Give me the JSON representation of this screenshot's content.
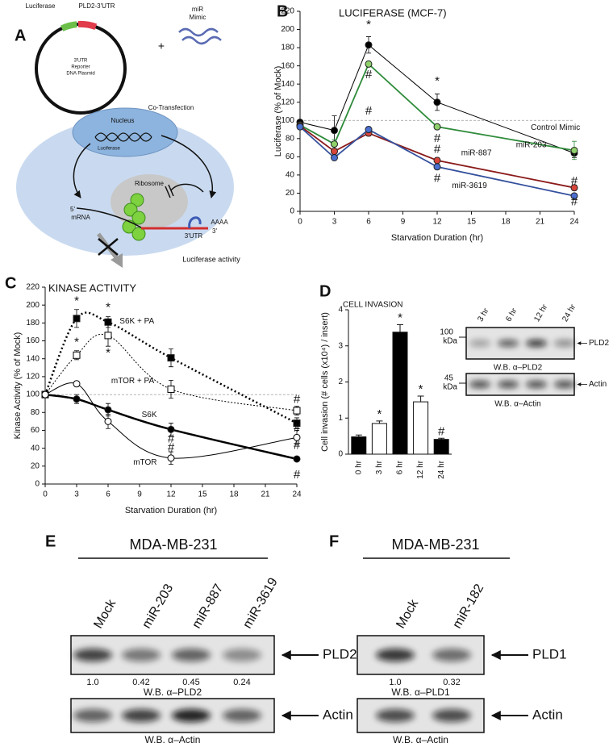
{
  "figure": {
    "panels": [
      "A",
      "B",
      "C",
      "D",
      "E",
      "F"
    ]
  },
  "diagram": {
    "luciferase": "Luciferase",
    "utr": "PLD2-3'UTR",
    "mimic": [
      "miR",
      "Mimic"
    ],
    "plasmid": [
      "3'UTR",
      "Reporter",
      "DNA Plasmid"
    ],
    "plus": "+",
    "transfection": "Co-Transfection",
    "nucleus": "Nucleus",
    "nucleus_luciferase": "Luciferase",
    "ribosome": "Ribosome",
    "five_prime": "5'",
    "mrna": "mRNA",
    "polya": "AAAA",
    "three_utr": "3'UTR",
    "three_prime": "3'",
    "activity": "Luciferase activity"
  },
  "chart_data": [
    {
      "type": "line",
      "title": "LUCIFERASE (MCF-7)",
      "x_label": "Starvation Duration (hr)",
      "y_label": "Luciferase (% of Mock)",
      "x": [
        0,
        3,
        6,
        12,
        24
      ],
      "xlim": [
        0,
        24
      ],
      "xticks": [
        0,
        3,
        6,
        9,
        12,
        15,
        18,
        21,
        24
      ],
      "ylim": [
        0,
        220
      ],
      "yticks": [
        0,
        20,
        40,
        60,
        80,
        100,
        120,
        140,
        160,
        180,
        200,
        220
      ],
      "reference_line": 100,
      "smooth": false,
      "series": [
        {
          "name": "Control Mimic",
          "color": "#000000",
          "marker_color": "#000000",
          "marker": "circle",
          "fill": "filled",
          "line_width": 1,
          "dashed": false,
          "values": [
            98,
            89,
            183,
            120,
            64
          ],
          "errors": [
            2,
            16,
            9,
            9,
            5
          ]
        },
        {
          "name": "miR-203",
          "color": "#2e8b3a",
          "marker_color": "#8fd16b",
          "marker": "circle",
          "fill": "filled",
          "line_width": 1.8,
          "dashed": false,
          "values": [
            95,
            74,
            162,
            93,
            67
          ],
          "errors": [
            2,
            5,
            3,
            2,
            10
          ]
        },
        {
          "name": "miR-887",
          "color": "#8b1a1a",
          "marker_color": "#d9453a",
          "marker": "circle",
          "fill": "filled",
          "line_width": 1.8,
          "dashed": false,
          "values": [
            94,
            66,
            86,
            56,
            26
          ],
          "errors": [
            2,
            3,
            3,
            3,
            3
          ]
        },
        {
          "name": "miR-3619",
          "color": "#34509c",
          "marker_color": "#4a6fd0",
          "marker": "circle",
          "fill": "filled",
          "line_width": 1.8,
          "dashed": false,
          "values": [
            93,
            59,
            90,
            49,
            17
          ],
          "errors": [
            2,
            2,
            3,
            3,
            2
          ]
        }
      ],
      "annotations": [
        {
          "text": "*",
          "x": 6,
          "y": 205
        },
        {
          "text": "#",
          "x": 6,
          "y": 150
        },
        {
          "text": "#",
          "x": 6,
          "y": 110
        },
        {
          "text": "*",
          "x": 12,
          "y": 143
        },
        {
          "text": "#",
          "x": 12,
          "y": 80
        },
        {
          "text": "#",
          "x": 12,
          "y": 68
        },
        {
          "text": "#",
          "x": 12,
          "y": 36
        },
        {
          "text": "#",
          "x": 24,
          "y": 33
        },
        {
          "text": "#",
          "x": 24,
          "y": 10
        }
      ]
    },
    {
      "type": "line",
      "title": "KINASE ACTIVITY",
      "x_label": "Starvation Duration (hr)",
      "y_label": "Kinase Activity (% of Mock)",
      "x": [
        0,
        3,
        6,
        12,
        24
      ],
      "xlim": [
        0,
        24
      ],
      "xticks": [
        0,
        3,
        6,
        9,
        12,
        15,
        18,
        21,
        24
      ],
      "ylim": [
        0,
        220
      ],
      "yticks": [
        0,
        20,
        40,
        60,
        80,
        100,
        120,
        140,
        160,
        180,
        200,
        220
      ],
      "reference_line": 100,
      "smooth": true,
      "series": [
        {
          "name": "S6K + PA",
          "color": "#000000",
          "marker_color": "#000000",
          "marker": "square",
          "fill": "filled",
          "line_width": 2.5,
          "dashed": true,
          "values": [
            100,
            185,
            181,
            141,
            68
          ],
          "errors": [
            3,
            10,
            6,
            10,
            6
          ]
        },
        {
          "name": "mTOR + PA",
          "color": "#000000",
          "marker_color": "#000000",
          "marker": "square",
          "fill": "open",
          "line_width": 1,
          "dashed": true,
          "values": [
            100,
            144,
            166,
            106,
            82
          ],
          "errors": [
            3,
            5,
            12,
            10,
            5
          ]
        },
        {
          "name": "S6K",
          "color": "#000000",
          "marker_color": "#000000",
          "marker": "circle",
          "fill": "filled",
          "line_width": 2.5,
          "dashed": false,
          "values": [
            100,
            95,
            83,
            61,
            28
          ],
          "errors": [
            3,
            5,
            7,
            7,
            2
          ]
        },
        {
          "name": "mTOR",
          "color": "#000000",
          "marker_color": "#000000",
          "marker": "circle",
          "fill": "open",
          "line_width": 1,
          "dashed": false,
          "values": [
            100,
            112,
            70,
            29,
            52
          ],
          "errors": [
            3,
            3,
            8,
            7,
            8
          ]
        }
      ],
      "annotations": [
        {
          "text": "*",
          "x": 3,
          "y": 204
        },
        {
          "text": "*",
          "x": 3,
          "y": 158
        },
        {
          "text": "*",
          "x": 6,
          "y": 197
        },
        {
          "text": "*",
          "x": 6,
          "y": 146
        },
        {
          "text": "#",
          "x": 12,
          "y": 50
        },
        {
          "text": "#",
          "x": 12,
          "y": 40
        },
        {
          "text": "#",
          "x": 24,
          "y": 94
        },
        {
          "text": "#",
          "x": 24,
          "y": 62
        },
        {
          "text": "#",
          "x": 24,
          "y": 43
        },
        {
          "text": "#",
          "x": 24,
          "y": 10
        }
      ]
    },
    {
      "type": "bar",
      "title": "CELL INVASION",
      "y_label": "Cell invasion (# cells (x10⁴) / insert)",
      "categories": [
        "0 hr",
        "3 hr",
        "6 hr",
        "12 hr",
        "24 hr"
      ],
      "values": [
        0.48,
        0.85,
        3.38,
        1.45,
        0.41
      ],
      "errors": [
        0.05,
        0.07,
        0.21,
        0.16,
        0.03
      ],
      "colors": [
        "#000000",
        "#ffffff",
        "#000000",
        "#ffffff",
        "#000000"
      ],
      "ylim": [
        0,
        4
      ],
      "yticks": [
        0,
        1,
        2,
        3,
        4
      ],
      "annotations": [
        null,
        "*",
        "*",
        "*",
        "#"
      ]
    }
  ],
  "blots": [
    {
      "lanes": [
        "3 hr",
        "6 hr",
        "12 hr",
        "24 hr"
      ],
      "rows": [
        {
          "marker": [
            "100",
            "kDa"
          ],
          "target": "PLD2",
          "antibody": "W.B. α–PLD2"
        },
        {
          "marker": [
            "45",
            "kDa"
          ],
          "target": "Actin",
          "antibody": "W.B. α–Actin"
        }
      ]
    },
    {
      "cell_line": "MDA-MB-231",
      "lanes": [
        "Mock",
        "miR-203",
        "miR-887",
        "miR-3619"
      ],
      "rows": [
        {
          "target": "PLD2",
          "quantification": [
            "1.0",
            "0.42",
            "0.45",
            "0.24"
          ],
          "antibody": "W.B. α–PLD2"
        },
        {
          "target": "Actin",
          "antibody": "W.B. α–Actin"
        }
      ]
    },
    {
      "cell_line": "MDA-MB-231",
      "lanes": [
        "Mock",
        "miR-182"
      ],
      "rows": [
        {
          "target": "PLD1",
          "quantification": [
            "1.0",
            "0.32"
          ],
          "antibody": "W.B. α–PLD1"
        },
        {
          "target": "Actin",
          "antibody": "W.B. α–Actin"
        }
      ]
    }
  ]
}
